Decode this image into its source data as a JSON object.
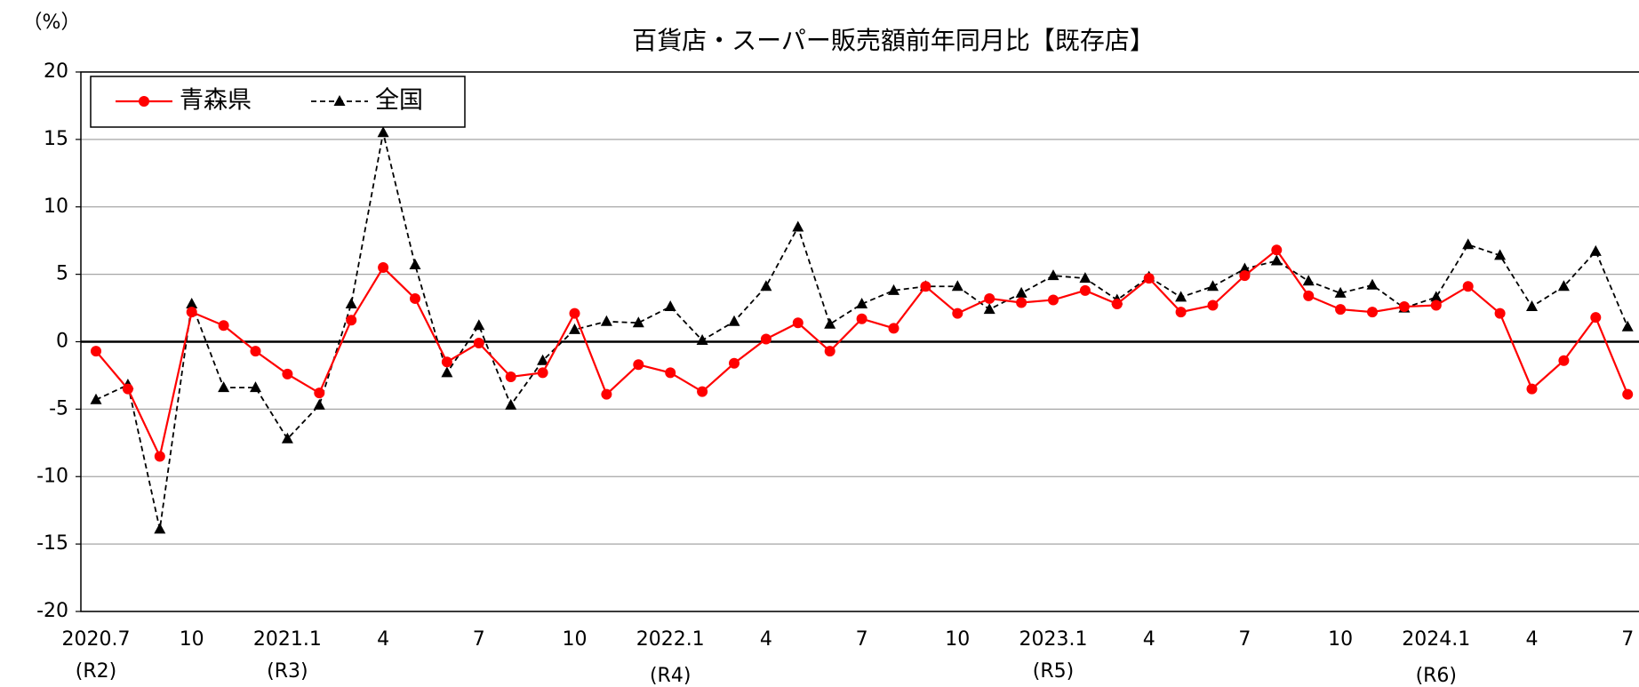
{
  "chart_data": {
    "type": "line",
    "title": "百貨店・スーパー販売額前年同月比【既存店】",
    "y_unit_label": "（%）",
    "categories": [
      "2020.7",
      null,
      null,
      "10",
      null,
      null,
      "2021.1",
      null,
      null,
      "4",
      null,
      null,
      "7",
      null,
      null,
      "10",
      null,
      null,
      "2022.1",
      null,
      null,
      "4",
      null,
      null,
      "7",
      null,
      null,
      "10",
      null,
      null,
      "2023.1",
      null,
      null,
      "4",
      null,
      null,
      "7",
      null,
      null,
      "10",
      null,
      null,
      "2024.1",
      null,
      null,
      "4",
      null,
      null,
      "7"
    ],
    "era_labels": [
      "(R2)",
      null,
      null,
      null,
      null,
      null,
      "(R3)",
      null,
      null,
      null,
      null,
      null,
      null,
      null,
      null,
      null,
      null,
      null,
      "(R4)",
      null,
      null,
      null,
      null,
      null,
      null,
      null,
      null,
      null,
      null,
      null,
      "(R5)",
      null,
      null,
      null,
      null,
      null,
      null,
      null,
      null,
      null,
      null,
      null,
      "(R6)",
      null,
      null,
      null,
      null,
      null,
      null
    ],
    "series": [
      {
        "name": "青森県",
        "color": "#ff0000",
        "marker": "circle",
        "dashed": false,
        "values": [
          -0.7,
          -3.5,
          -8.5,
          2.2,
          1.2,
          -0.7,
          -2.4,
          -3.8,
          1.6,
          5.5,
          3.2,
          -1.5,
          -0.1,
          -2.6,
          -2.3,
          2.1,
          -3.9,
          -1.7,
          -2.3,
          -3.7,
          -1.6,
          0.2,
          1.4,
          -0.7,
          1.7,
          1.0,
          4.1,
          2.1,
          3.2,
          2.9,
          3.1,
          3.8,
          2.8,
          4.7,
          2.2,
          2.7,
          4.9,
          6.8,
          3.4,
          2.4,
          2.2,
          2.6,
          2.7,
          4.1,
          2.1,
          -3.5,
          -1.4,
          1.8,
          -3.9
        ]
      },
      {
        "name": "全国",
        "color": "#000000",
        "marker": "triangle",
        "dashed": true,
        "values": [
          -4.3,
          -3.2,
          -13.9,
          2.8,
          -3.4,
          -3.4,
          -7.2,
          -4.7,
          2.8,
          15.5,
          5.7,
          -2.3,
          1.2,
          -4.7,
          -1.4,
          0.9,
          1.5,
          1.4,
          2.6,
          0.1,
          1.5,
          4.1,
          8.5,
          1.3,
          2.8,
          3.8,
          4.1,
          4.1,
          2.4,
          3.6,
          4.9,
          4.7,
          3.1,
          4.8,
          3.3,
          4.1,
          5.4,
          6.0,
          4.5,
          3.6,
          4.2,
          2.5,
          3.3,
          7.2,
          6.4,
          2.6,
          4.1,
          6.7,
          1.1
        ]
      }
    ],
    "ylim": [
      -20,
      20
    ],
    "yticks": [
      -20,
      -15,
      -10,
      -5,
      0,
      5,
      10,
      15,
      20
    ],
    "grid": true,
    "legend_position": "top-left"
  }
}
